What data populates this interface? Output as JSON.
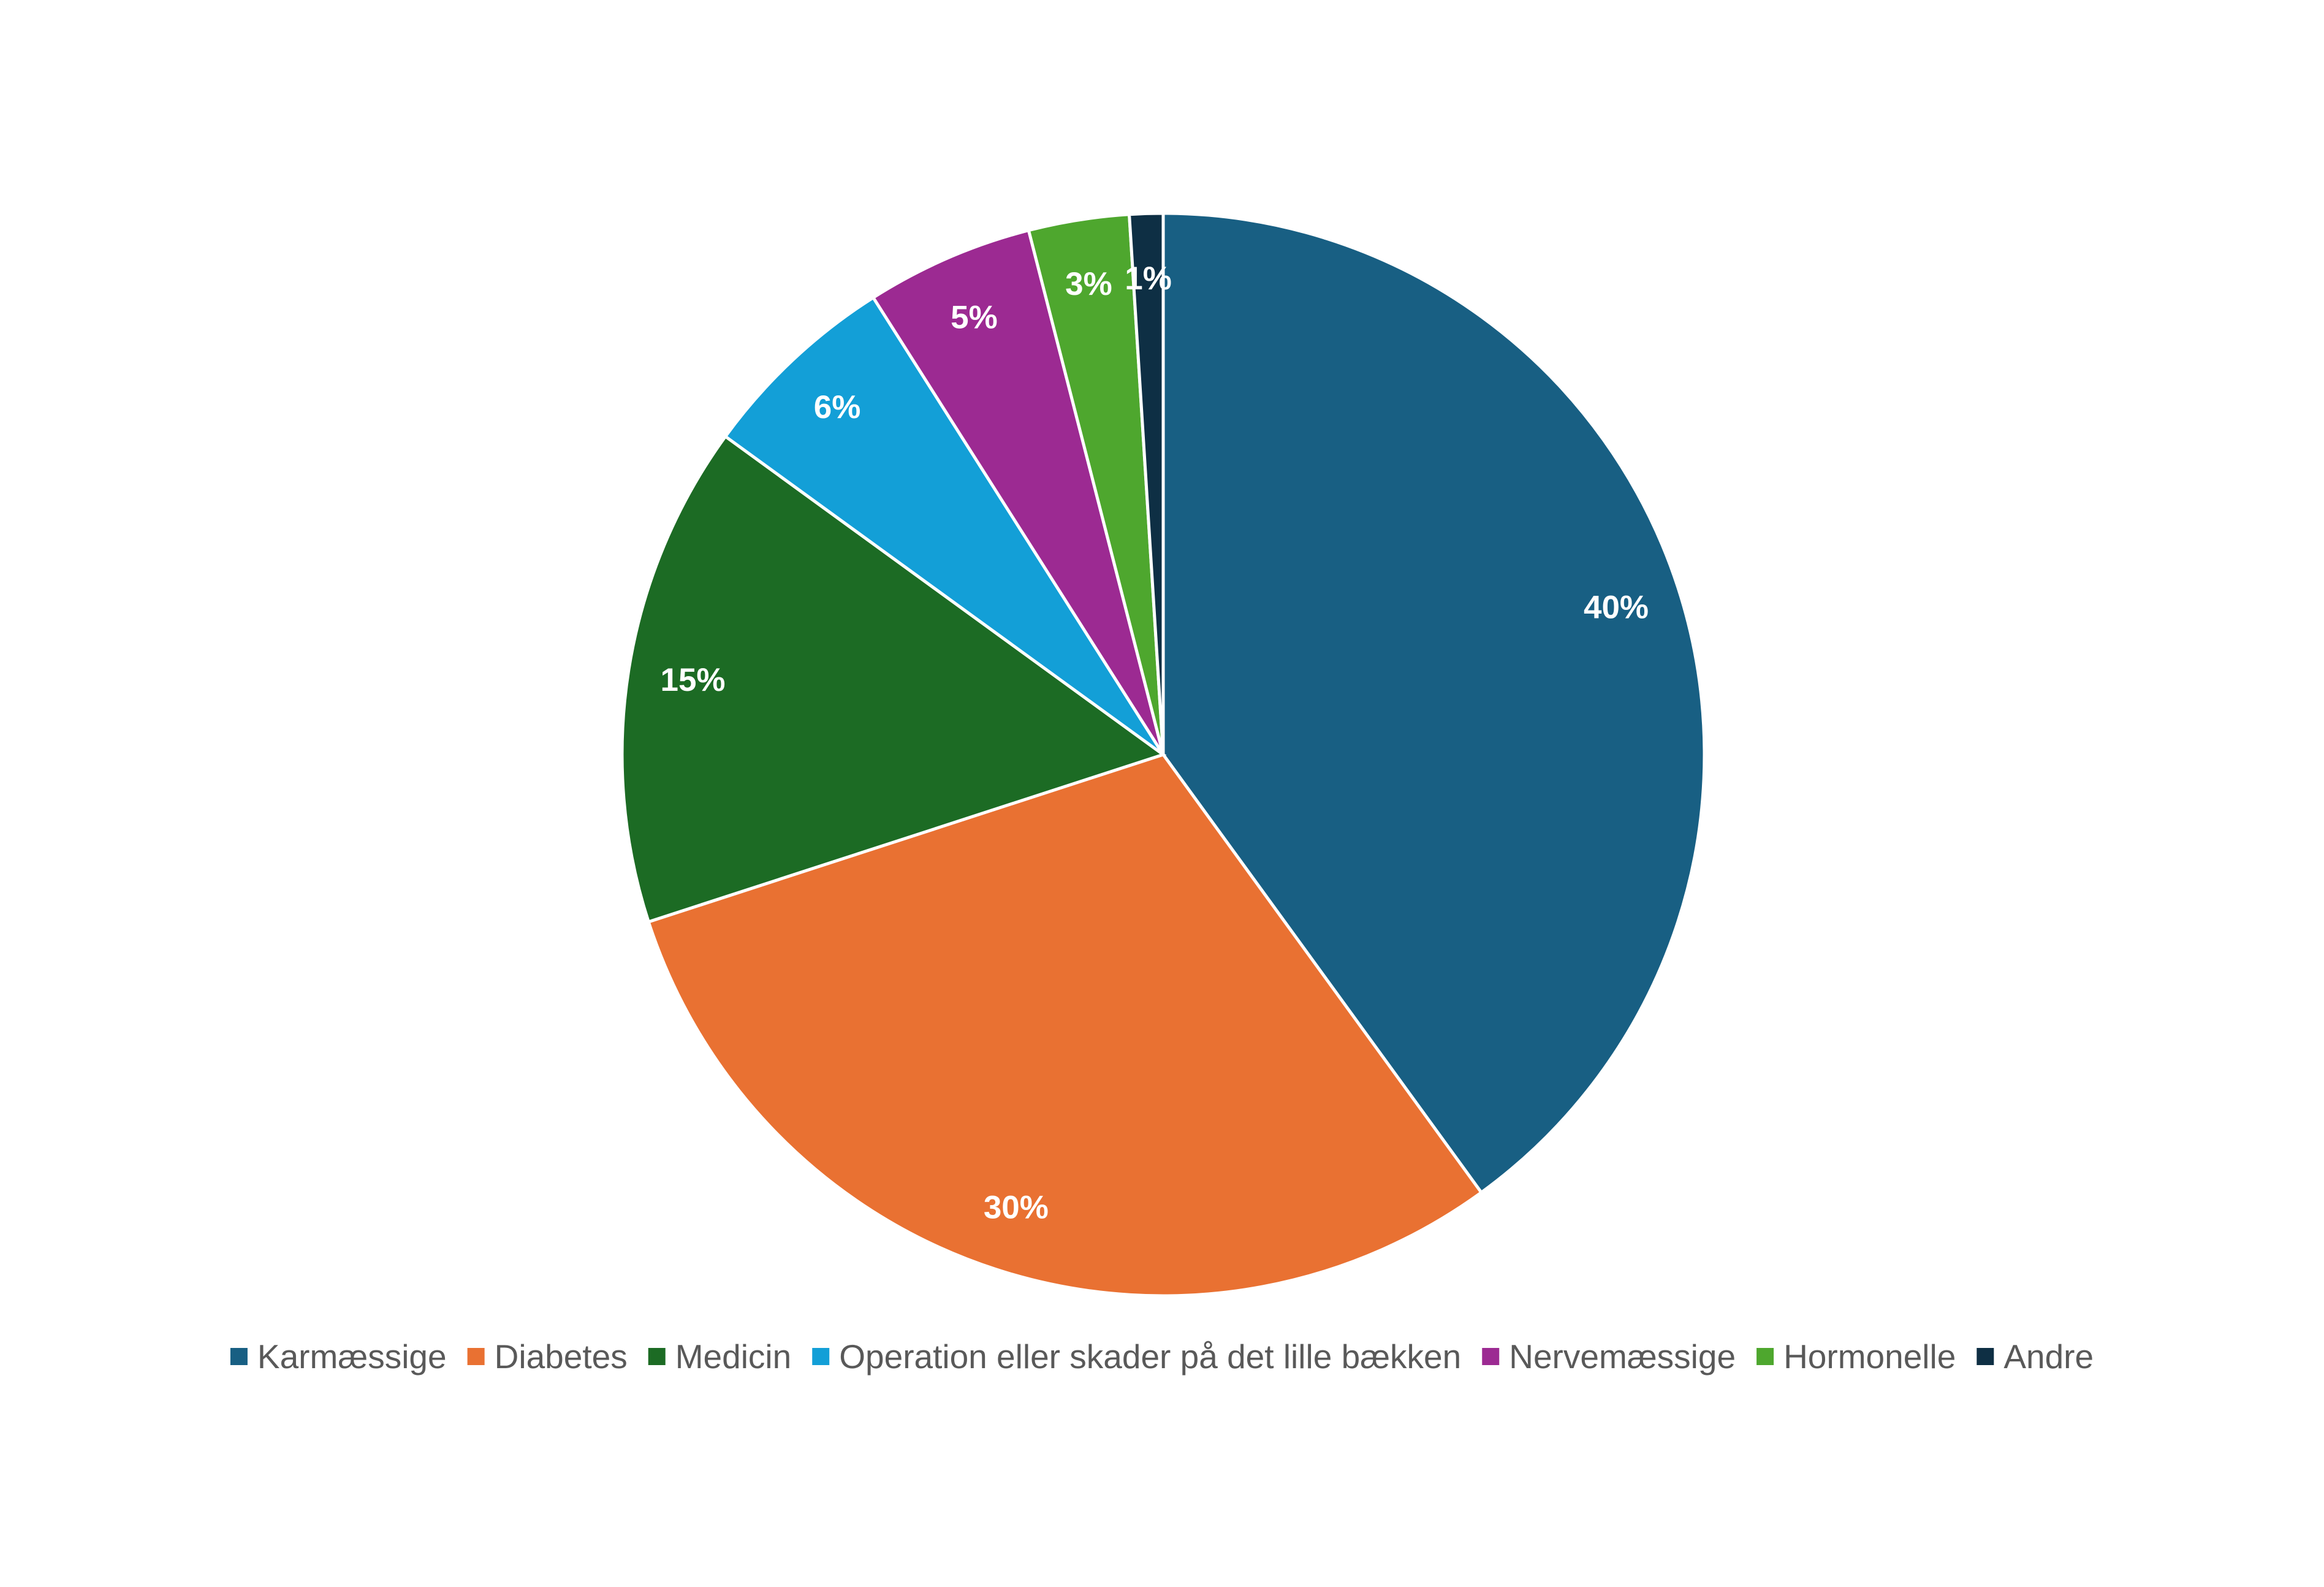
{
  "chart_data": {
    "type": "pie",
    "categories": [
      "Karmæssige",
      "Diabetes",
      "Medicin",
      "Operation eller skader på det lille bækken",
      "Nervemæssige",
      "Hormonelle",
      "Andre"
    ],
    "values": [
      40,
      30,
      15,
      6,
      5,
      3,
      1
    ],
    "value_labels": [
      "40%",
      "30%",
      "15%",
      "6%",
      "5%",
      "3%",
      "1%"
    ],
    "colors": [
      "#185f83",
      "#e97132",
      "#1c6b24",
      "#139fd7",
      "#9c2a92",
      "#4ea72e",
      "#0e2f44"
    ],
    "legend": "bottom"
  }
}
